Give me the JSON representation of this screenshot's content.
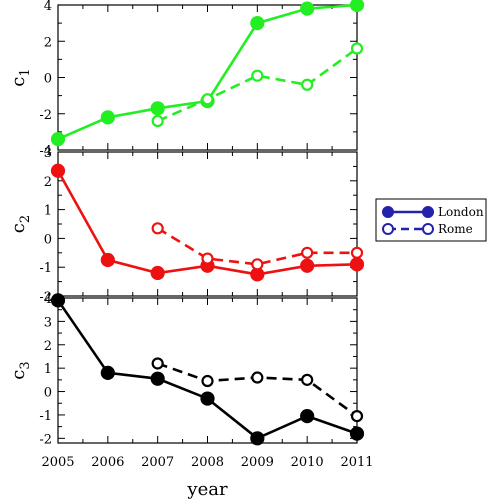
{
  "chart_data": {
    "type": "line",
    "xlabel": "year",
    "x": [
      2005,
      2006,
      2007,
      2008,
      2009,
      2010,
      2011
    ],
    "x_tick_labels": [
      "2005",
      "2006",
      "2007",
      "2008",
      "2009",
      "2010",
      "2011"
    ],
    "xlim": [
      2005,
      2011
    ],
    "legend": {
      "placement": "right",
      "entries": [
        {
          "name": "London",
          "marker": "filled",
          "line": "solid"
        },
        {
          "name": "Rome",
          "marker": "open",
          "line": "dashed"
        }
      ]
    },
    "panels": [
      {
        "ylabel": "c",
        "ylabel_sub": "1",
        "color": "#22ee22",
        "ylim": [
          -4,
          4
        ],
        "y_ticks": [
          -4,
          -2,
          0,
          2,
          4
        ],
        "y_tick_labels": [
          "-4",
          "-2",
          "0",
          "2",
          "4"
        ],
        "series": [
          {
            "name": "London",
            "x": [
              2005,
              2006,
              2007,
              2008,
              2009,
              2010,
              2011
            ],
            "values": [
              -3.4,
              -2.2,
              -1.7,
              -1.3,
              3.0,
              3.8,
              4.0
            ]
          },
          {
            "name": "Rome",
            "x": [
              2007,
              2008,
              2009,
              2010,
              2011
            ],
            "values": [
              -2.4,
              -1.2,
              0.1,
              -0.4,
              1.6
            ]
          }
        ]
      },
      {
        "ylabel": "c",
        "ylabel_sub": "2",
        "color": "#ee1111",
        "ylim": [
          -2,
          3
        ],
        "y_ticks": [
          -2,
          -1,
          0,
          1,
          2,
          3
        ],
        "y_tick_labels": [
          "-2",
          "-1",
          "0",
          "1",
          "2",
          "3"
        ],
        "series": [
          {
            "name": "London",
            "x": [
              2005,
              2006,
              2007,
              2008,
              2009,
              2010,
              2011
            ],
            "values": [
              2.35,
              -0.75,
              -1.2,
              -0.95,
              -1.25,
              -0.95,
              -0.9
            ]
          },
          {
            "name": "Rome",
            "x": [
              2007,
              2008,
              2009,
              2010,
              2011
            ],
            "values": [
              0.35,
              -0.7,
              -0.9,
              -0.5,
              -0.5
            ]
          }
        ]
      },
      {
        "ylabel": "c",
        "ylabel_sub": "3",
        "color": "#000000",
        "ylim": [
          -2.2,
          4
        ],
        "y_ticks": [
          -2,
          -1,
          0,
          1,
          2,
          3,
          4
        ],
        "y_tick_labels": [
          "-2",
          "-1",
          "0",
          "1",
          "2",
          "3",
          "4"
        ],
        "series": [
          {
            "name": "London",
            "x": [
              2005,
              2006,
              2007,
              2008,
              2009,
              2010,
              2011
            ],
            "values": [
              3.9,
              0.8,
              0.55,
              -0.3,
              -2.0,
              -1.05,
              -1.8
            ]
          },
          {
            "name": "Rome",
            "x": [
              2007,
              2008,
              2009,
              2010,
              2011
            ],
            "values": [
              1.2,
              0.45,
              0.6,
              0.5,
              -1.05
            ]
          }
        ]
      }
    ],
    "legend_color": "#2222aa"
  }
}
